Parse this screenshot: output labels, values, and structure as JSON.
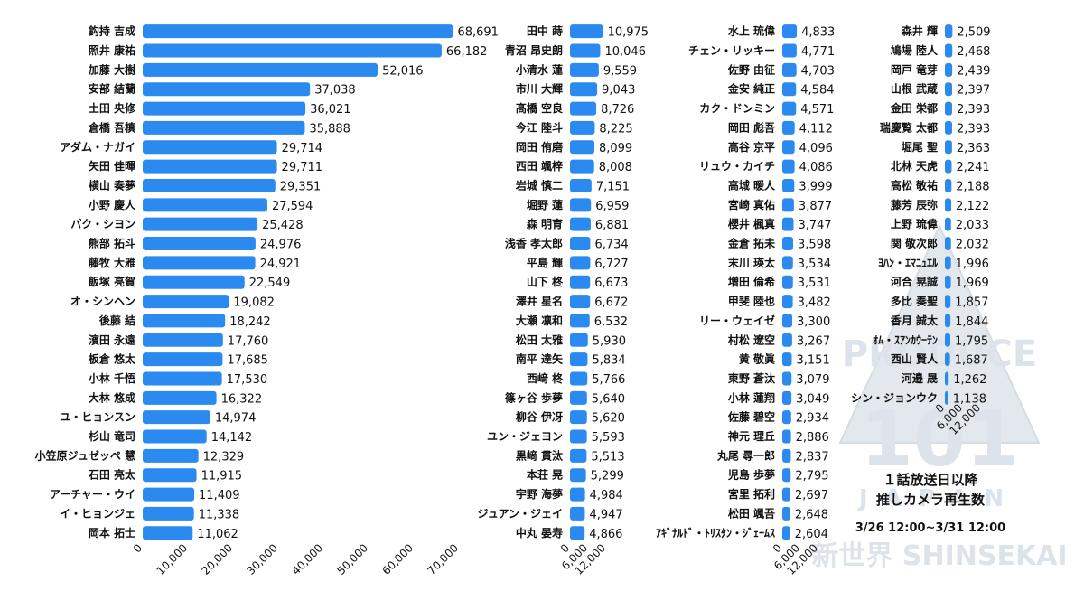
{
  "chart_data": {
    "type": "bar",
    "orientation": "horizontal",
    "color": "#2b8af0",
    "panels": [
      {
        "xlim": [
          0,
          70000
        ],
        "xticks": [
          "0",
          "10,000",
          "20,000",
          "30,000",
          "40,000",
          "50,000",
          "60,000",
          "70,000"
        ],
        "names": [
          "鈎持 吉成",
          "照井 康祐",
          "加藤 大樹",
          "安部 結蘭",
          "土田 央修",
          "倉橋 吾槙",
          "アダム・ナガイ",
          "矢田 佳暉",
          "横山 奏夢",
          "小野 慶人",
          "パク・シヨン",
          "熊部 拓斗",
          "藤牧 大雅",
          "飯塚 亮賀",
          "オ・シンヘン",
          "後藤 結",
          "濱田 永遠",
          "板倉 悠太",
          "小林 千悟",
          "大林 悠成",
          "ユ・ヒョンスン",
          "杉山 竜司",
          "小笠原ジュゼッペ 慧",
          "石田 亮太",
          "アーチャー・ウイ",
          "イ・ヒョンジェ",
          "岡本 拓士"
        ],
        "values": [
          68691,
          66182,
          52016,
          37038,
          36021,
          35888,
          29714,
          29711,
          29351,
          27594,
          25428,
          24976,
          24921,
          22549,
          19082,
          18242,
          17760,
          17685,
          17530,
          16322,
          14974,
          14142,
          12329,
          11915,
          11409,
          11338,
          11062
        ],
        "labels": [
          "68,691",
          "66,182",
          "52,016",
          "37,038",
          "36,021",
          "35,888",
          "29,714",
          "29,711",
          "29,351",
          "27,594",
          "25,428",
          "24,976",
          "24,921",
          "22,549",
          "19,082",
          "18,242",
          "17,760",
          "17,685",
          "17,530",
          "16,322",
          "14,974",
          "14,142",
          "12,329",
          "11,915",
          "11,409",
          "11,338",
          "11,062"
        ]
      },
      {
        "xlim": [
          0,
          12000
        ],
        "xticks": [
          "0",
          "6,000",
          "12,000"
        ],
        "names": [
          "田中 蒔",
          "青沼 昂史朗",
          "小清水 蓮",
          "市川 大輝",
          "髙橋 空良",
          "今江 陸斗",
          "岡田 侑磨",
          "西田 颯梓",
          "岩城 慎二",
          "堀野 蓮",
          "森 明育",
          "浅香 孝太郎",
          "平島 輝",
          "山下 柊",
          "澤井 星名",
          "大瀬 凛和",
          "松田 太雅",
          "南平 達矢",
          "西﨑 柊",
          "篠ヶ谷 歩夢",
          "柳谷 伊冴",
          "ユン・ジェヨン",
          "黒﨑 貫汰",
          "本荘 晃",
          "宇野 海夢",
          "ジュアン・ジェイ",
          "中丸 晏寿"
        ],
        "values": [
          10975,
          10046,
          9559,
          9043,
          8726,
          8225,
          8099,
          8008,
          7151,
          6959,
          6881,
          6734,
          6727,
          6673,
          6672,
          6532,
          5930,
          5834,
          5766,
          5640,
          5620,
          5593,
          5513,
          5299,
          4984,
          4947,
          4866
        ],
        "labels": [
          "10,975",
          "10,046",
          "9,559",
          "9,043",
          "8,726",
          "8,225",
          "8,099",
          "8,008",
          "7,151",
          "6,959",
          "6,881",
          "6,734",
          "6,727",
          "6,673",
          "6,672",
          "6,532",
          "5,930",
          "5,834",
          "5,766",
          "5,640",
          "5,620",
          "5,593",
          "5,513",
          "5,299",
          "4,984",
          "4,947",
          "4,866"
        ]
      },
      {
        "xlim": [
          0,
          12000
        ],
        "xticks": [
          "0",
          "6,000",
          "12,000"
        ],
        "names": [
          "水上 琉偉",
          "チェン・リッキー",
          "佐野 由征",
          "金安 純正",
          "カク・ドンミン",
          "岡田 彪吾",
          "高谷 京平",
          "リュウ・カイチ",
          "高城 暖人",
          "宮崎 真佑",
          "櫻井 楓真",
          "金倉 拓未",
          "末川 瑛太",
          "増田 倫希",
          "甲斐 陸也",
          "リー・ウェイゼ",
          "村松 遼空",
          "黄 敬眞",
          "東野 蒼汰",
          "小林 蓮翔",
          "佐藤 碧空",
          "神元 理丘",
          "丸尾 尋一郎",
          "児島 歩夢",
          "宮里 拓利",
          "松田 颯吾",
          "ｱｷﾞﾅﾙﾄﾞ・ﾄﾘｽﾀﾝ・ｼﾞｪｰﾑｽ"
        ],
        "values": [
          4833,
          4771,
          4703,
          4584,
          4571,
          4112,
          4096,
          4086,
          3999,
          3877,
          3747,
          3598,
          3534,
          3531,
          3482,
          3300,
          3267,
          3151,
          3079,
          3049,
          2934,
          2886,
          2837,
          2795,
          2697,
          2648,
          2604
        ],
        "labels": [
          "4,833",
          "4,771",
          "4,703",
          "4,584",
          "4,571",
          "4,112",
          "4,096",
          "4,086",
          "3,999",
          "3,877",
          "3,747",
          "3,598",
          "3,534",
          "3,531",
          "3,482",
          "3,300",
          "3,267",
          "3,151",
          "3,079",
          "3,049",
          "2,934",
          "2,886",
          "2,837",
          "2,795",
          "2,697",
          "2,648",
          "2,604"
        ]
      },
      {
        "xlim": [
          0,
          12000
        ],
        "xticks": [
          "0",
          "6,000",
          "12,000"
        ],
        "names": [
          "森井 輝",
          "鳩場 陸人",
          "岡戸 竜芽",
          "山根 武蔵",
          "金田 栄都",
          "瑞慶覧 太都",
          "堀尾 聖",
          "北林 天虎",
          "高松 敬祐",
          "藤芳 辰弥",
          "上野 琉偉",
          "関 敬次郎",
          "ﾖﾊﾝ・ｴﾏﾆｭｴﾙ",
          "河合 晃誠",
          "多比 奏聖",
          "香月 誠太",
          "ｵﾑ・ｽｱﾝｶｳｰﾃﾝ",
          "西山 賢人",
          "河邉 晟",
          "シン・ジョンウク"
        ],
        "values": [
          2509,
          2468,
          2439,
          2397,
          2393,
          2393,
          2363,
          2241,
          2188,
          2122,
          2033,
          2032,
          1996,
          1969,
          1857,
          1844,
          1795,
          1687,
          1262,
          1138
        ],
        "labels": [
          "2,509",
          "2,468",
          "2,439",
          "2,397",
          "2,393",
          "2,393",
          "2,363",
          "2,241",
          "2,188",
          "2,122",
          "2,033",
          "2,032",
          "1,996",
          "1,969",
          "1,857",
          "1,844",
          "1,795",
          "1,687",
          "1,262",
          "1,138"
        ]
      }
    ]
  },
  "caption": {
    "line1": "１話放送日以降",
    "line2": "推しカメラ再生数",
    "line3": "3/26 12:00~3/31 12:00"
  },
  "watermark": {
    "top": "PRODUCE",
    "number": "101",
    "country": "JAPAN",
    "subtitle": "新世界 SHINSEKAI"
  }
}
